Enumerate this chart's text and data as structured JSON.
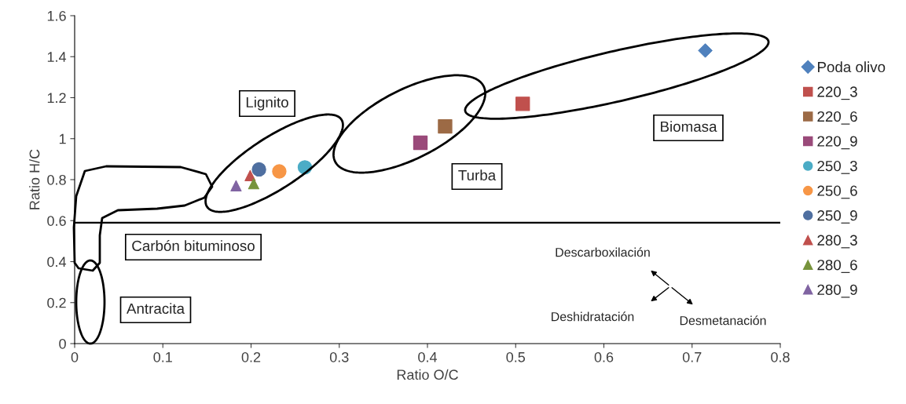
{
  "chart_data": {
    "type": "scatter",
    "xlabel": "Ratio O/C",
    "ylabel": "Ratio H/C",
    "xlim": [
      0,
      0.8
    ],
    "ylim": [
      0,
      1.6
    ],
    "xticks": [
      0,
      0.1,
      0.2,
      0.3,
      0.4,
      0.5,
      0.6,
      0.7,
      0.8
    ],
    "yticks": [
      0,
      0.2,
      0.4,
      0.6,
      0.8,
      1,
      1.2,
      1.4,
      1.6
    ],
    "grid": false,
    "legend": "right",
    "series": [
      {
        "name": "Poda olivo",
        "color": "#4f81bd",
        "marker": "diamond",
        "x": [
          0.715
        ],
        "values": [
          1.43
        ]
      },
      {
        "name": "220_3",
        "color": "#c0504d",
        "marker": "square",
        "x": [
          0.508
        ],
        "values": [
          1.17
        ]
      },
      {
        "name": "220_6",
        "color": "#9c6a45",
        "marker": "square",
        "x": [
          0.42
        ],
        "values": [
          1.06
        ]
      },
      {
        "name": "220_9",
        "color": "#9a4a7a",
        "marker": "square",
        "x": [
          0.392
        ],
        "values": [
          0.98
        ]
      },
      {
        "name": "250_3",
        "color": "#4bacc6",
        "marker": "circle",
        "x": [
          0.261
        ],
        "values": [
          0.86
        ]
      },
      {
        "name": "250_6",
        "color": "#f79646",
        "marker": "circle",
        "x": [
          0.232
        ],
        "values": [
          0.84
        ]
      },
      {
        "name": "250_9",
        "color": "#4f6fa0",
        "marker": "circle",
        "x": [
          0.209
        ],
        "values": [
          0.85
        ]
      },
      {
        "name": "280_3",
        "color": "#c0504d",
        "marker": "triangle",
        "x": [
          0.199
        ],
        "values": [
          0.82
        ]
      },
      {
        "name": "280_6",
        "color": "#77933c",
        "marker": "triangle",
        "x": [
          0.203
        ],
        "values": [
          0.78
        ]
      },
      {
        "name": "280_9",
        "color": "#8064a2",
        "marker": "triangle",
        "x": [
          0.183
        ],
        "values": [
          0.77
        ]
      }
    ],
    "ref_lines": [
      {
        "axis": "y",
        "value": 0.59,
        "color": "#000000"
      }
    ],
    "annotations": [
      "Lignito",
      "Turba",
      "Biomasa",
      "Carbón bituminoso",
      "Antracita",
      "Descarboxilación",
      "Deshidratación",
      "Desmetanación"
    ]
  }
}
